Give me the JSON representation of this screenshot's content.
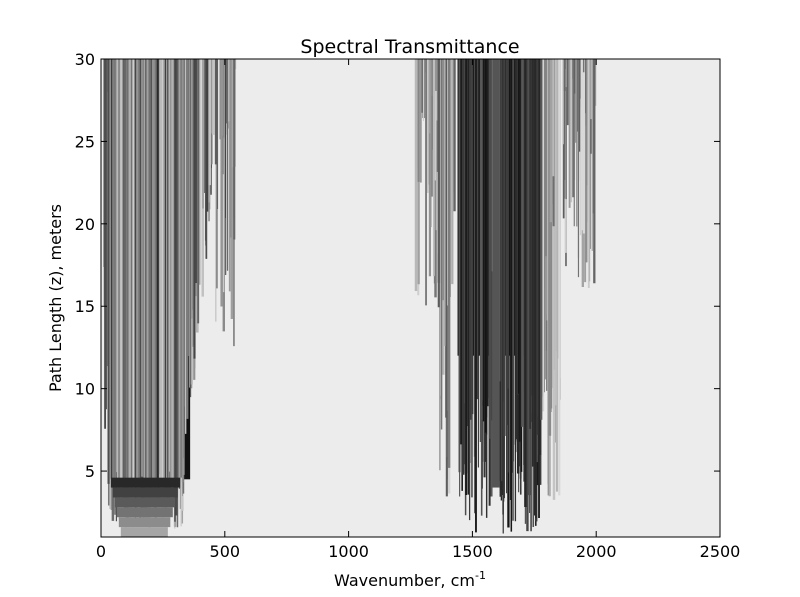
{
  "chart_data": {
    "type": "heatmap",
    "title": "Spectral Transmittance",
    "xlabel": "Wavenumber, cm",
    "xlabel_superscript": "-1",
    "ylabel": "Path Length (z), meters",
    "xlim": [
      0,
      2500
    ],
    "ylim": [
      1,
      30
    ],
    "x_ticks": [
      0,
      500,
      1000,
      1500,
      2000,
      2500
    ],
    "x_tick_labels": [
      "0",
      "500",
      "1000",
      "1500",
      "2000",
      "2500"
    ],
    "y_ticks": [
      5,
      10,
      15,
      20,
      25,
      30
    ],
    "y_tick_labels": [
      "5",
      "10",
      "15",
      "20",
      "25",
      "30"
    ],
    "colormap": "gray",
    "colors": {
      "transparent": "#ececec",
      "opaque": "#111111"
    },
    "value_meaning": "transmittance 0 (black) to 1 (light gray)",
    "grid": false,
    "absorption_bands": [
      {
        "name": "band-1",
        "x_range": [
          10,
          550
        ],
        "core_x_range": [
          30,
          360
        ],
        "core_saturation_z": 4.5
      },
      {
        "name": "band-2",
        "x_range": [
          1270,
          2000
        ],
        "core_x_range": [
          1360,
          1860
        ],
        "core_saturation_z": 12
      }
    ]
  }
}
